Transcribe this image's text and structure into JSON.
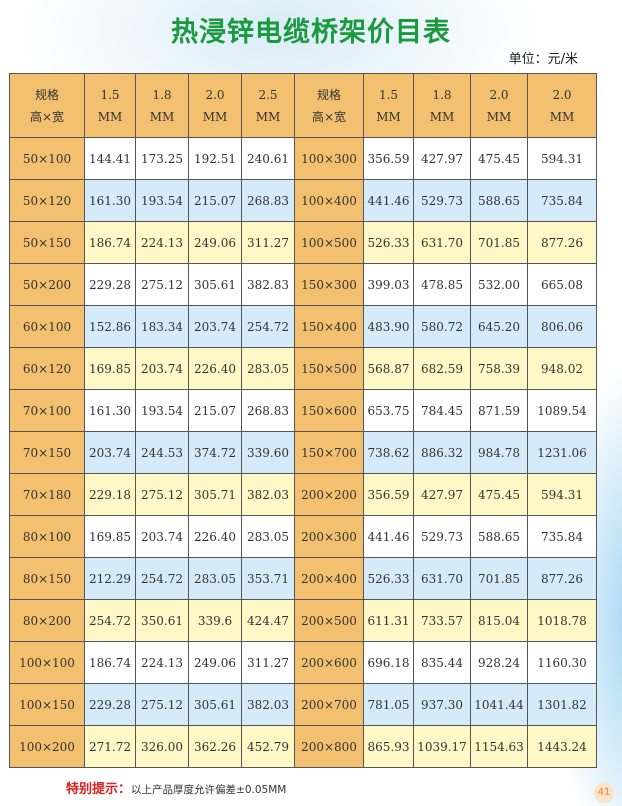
{
  "title": "热浸锌电缆桥架价目表",
  "unit": "单位：元/米",
  "header": [
    [
      "规格",
      "高×宽"
    ],
    [
      "1.5",
      "MM"
    ],
    [
      "1.8",
      "MM"
    ],
    [
      "2.0",
      "MM"
    ],
    [
      "2.5",
      "MM"
    ],
    [
      "规格",
      "高×宽"
    ],
    [
      "1.5",
      "MM"
    ],
    [
      "1.8",
      "MM"
    ],
    [
      "2.0",
      "MM"
    ],
    [
      "2.0",
      "MM"
    ]
  ],
  "rows": [
    [
      "50×100",
      "144.41",
      "173.25",
      "192.51",
      "240.61",
      "100×300",
      "356.59",
      "427.97",
      "475.45",
      "594.31"
    ],
    [
      "50×120",
      "161.30",
      "193.54",
      "215.07",
      "268.83",
      "100×400",
      "441.46",
      "529.73",
      "588.65",
      "735.84"
    ],
    [
      "50×150",
      "186.74",
      "224.13",
      "249.06",
      "311.27",
      "100×500",
      "526.33",
      "631.70",
      "701.85",
      "877.26"
    ],
    [
      "50×200",
      "229.28",
      "275.12",
      "305.61",
      "382.83",
      "150×300",
      "399.03",
      "478.85",
      "532.00",
      "665.08"
    ],
    [
      "60×100",
      "152.86",
      "183.34",
      "203.74",
      "254.72",
      "150×400",
      "483.90",
      "580.72",
      "645.20",
      "806.06"
    ],
    [
      "60×120",
      "169.85",
      "203.74",
      "226.40",
      "283.05",
      "150×500",
      "568.87",
      "682.59",
      "758.39",
      "948.02"
    ],
    [
      "70×100",
      "161.30",
      "193.54",
      "215.07",
      "268.83",
      "150×600",
      "653.75",
      "784.45",
      "871.59",
      "1089.54"
    ],
    [
      "70×150",
      "203.74",
      "244.53",
      "374.72",
      "339.60",
      "150×700",
      "738.62",
      "886.32",
      "984.78",
      "1231.06"
    ],
    [
      "70×180",
      "229.18",
      "275.12",
      "305.71",
      "382.03",
      "200×200",
      "356.59",
      "427.97",
      "475.45",
      "594.31"
    ],
    [
      "80×100",
      "169.85",
      "203.74",
      "226.40",
      "283.05",
      "200×300",
      "441.46",
      "529.73",
      "588.65",
      "735.84"
    ],
    [
      "80×150",
      "212.29",
      "254.72",
      "283.05",
      "353.71",
      "200×400",
      "526.33",
      "631.70",
      "701.85",
      "877.26"
    ],
    [
      "80×200",
      "254.72",
      "350.61",
      "339.6",
      "424.47",
      "200×500",
      "611.31",
      "733.57",
      "815.04",
      "1018.78"
    ],
    [
      "100×100",
      "186.74",
      "224.13",
      "249.06",
      "311.27",
      "200×600",
      "696.18",
      "835.44",
      "928.24",
      "1160.30"
    ],
    [
      "100×150",
      "229.28",
      "275.12",
      "305.61",
      "382.03",
      "200×700",
      "781.05",
      "937.30",
      "1041.44",
      "1301.82"
    ],
    [
      "100×200",
      "271.72",
      "326.00",
      "362.26",
      "452.79",
      "200×800",
      "865.93",
      "1039.17",
      "1154.63",
      "1443.24"
    ]
  ],
  "row_colors": [
    "#ffffff",
    "#d6ebf9",
    "#fdf8c6"
  ],
  "spec_color": "#f2c06e",
  "note": {
    "label": "特别提示：",
    "text": "以上产品厚度允许偏差±0.05MM"
  },
  "page_number": "41"
}
